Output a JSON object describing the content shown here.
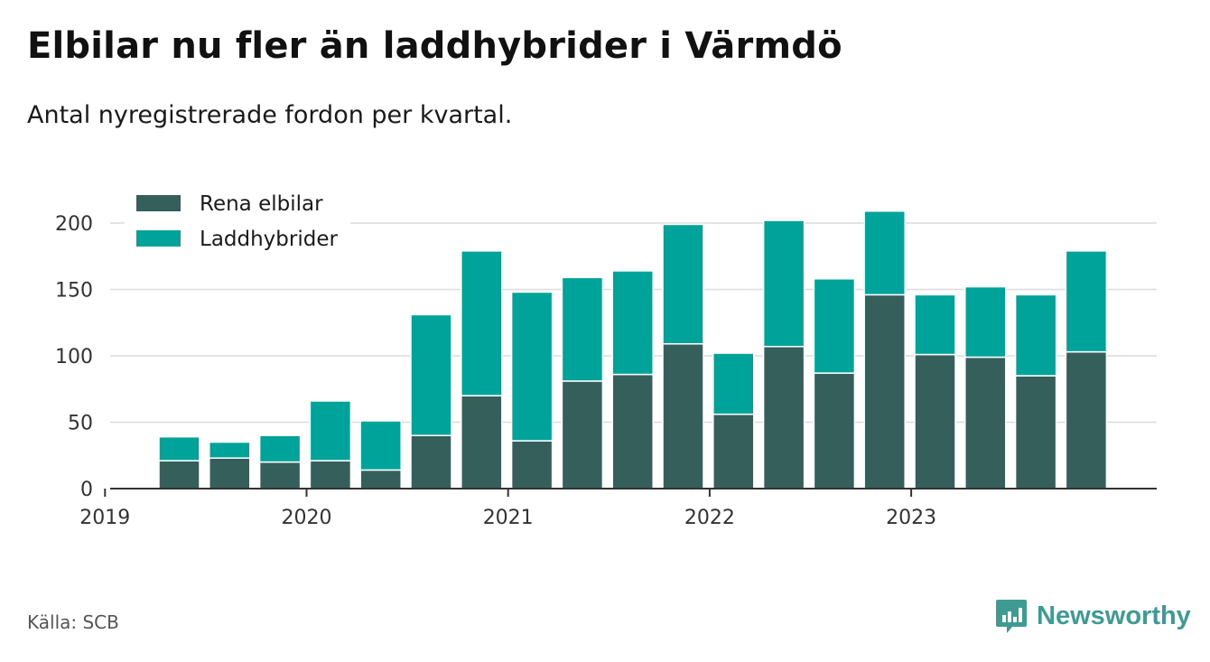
{
  "title": "Elbilar nu fler än laddhybrider i Värmdö",
  "subtitle": "Antal nyregistrerade fordon per kvartal.",
  "source": "Källa: SCB",
  "brand": {
    "name": "Newsworthy",
    "icon": "newsworthy-logo-icon",
    "color": "#3e9b93"
  },
  "chart_data": {
    "type": "bar",
    "stacked": true,
    "categories": [
      "2019 Q2",
      "2019 Q3",
      "2019 Q4",
      "2020 Q1",
      "2020 Q2",
      "2020 Q3",
      "2020 Q4",
      "2021 Q1",
      "2021 Q2",
      "2021 Q3",
      "2021 Q4",
      "2022 Q1",
      "2022 Q2",
      "2022 Q3",
      "2022 Q4",
      "2023 Q1",
      "2023 Q2",
      "2023 Q3",
      "2023 Q4"
    ],
    "series": [
      {
        "name": "Rena elbilar",
        "color": "#345f5b",
        "values": [
          21,
          23,
          20,
          21,
          14,
          40,
          70,
          36,
          81,
          86,
          109,
          56,
          107,
          87,
          146,
          101,
          99,
          85,
          103
        ]
      },
      {
        "name": "Laddhybrider",
        "color": "#00a39a",
        "values": [
          18,
          12,
          20,
          45,
          37,
          91,
          109,
          112,
          78,
          78,
          90,
          46,
          95,
          71,
          63,
          45,
          53,
          61,
          76
        ]
      }
    ],
    "x_ticks": [
      "2019",
      "2020",
      "2021",
      "2022",
      "2023"
    ],
    "y_ticks": [
      0,
      50,
      100,
      150,
      200
    ],
    "ylim": [
      0,
      200
    ],
    "grid": true,
    "legend_position": "top-left"
  }
}
